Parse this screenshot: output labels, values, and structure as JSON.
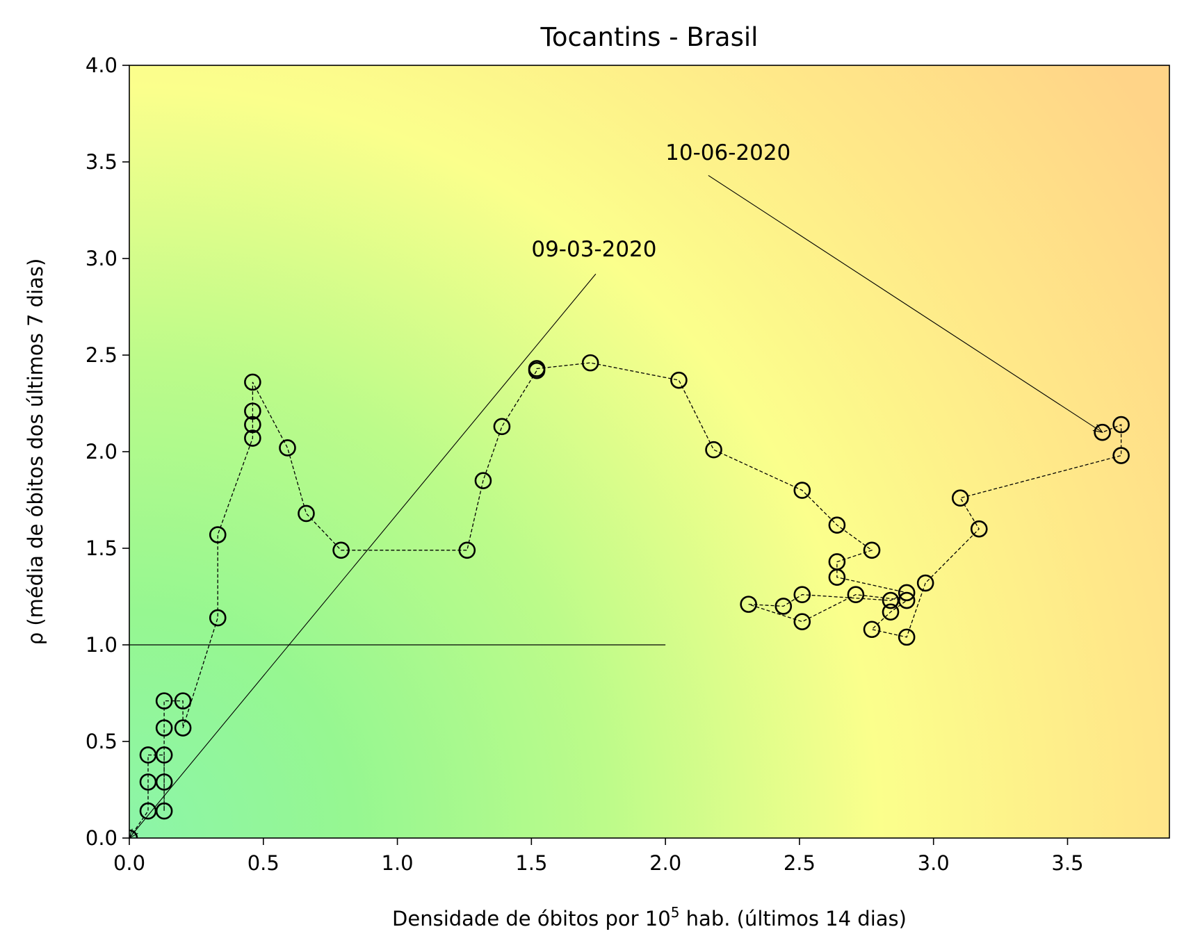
{
  "chart_data": {
    "type": "scatter",
    "title": "Tocantins - Brasil",
    "xlabel_main": "Densidade de óbitos por 10",
    "xlabel_sup": "5",
    "xlabel_tail": " hab. (últimos 14 dias)",
    "ylabel": "ρ (média de óbitos dos últimos 7 dias)",
    "xlim": [
      0,
      3.88
    ],
    "ylim": [
      0,
      4.0
    ],
    "xticks": [
      0.0,
      0.5,
      1.0,
      1.5,
      2.0,
      2.5,
      3.0,
      3.5
    ],
    "xtick_labels": [
      "0.0",
      "0.5",
      "1.0",
      "1.5",
      "2.0",
      "2.5",
      "3.0",
      "3.5"
    ],
    "yticks": [
      0.0,
      0.5,
      1.0,
      1.5,
      2.0,
      2.5,
      3.0,
      3.5,
      4.0
    ],
    "ytick_labels": [
      "0.0",
      "0.5",
      "1.0",
      "1.5",
      "2.0",
      "2.5",
      "3.0",
      "3.5",
      "4.0"
    ],
    "grid": false,
    "background": "gradient: green (low x, low y) to yellow to orange (high x, high y)",
    "reference_line": {
      "y": 1.0,
      "x_range": [
        0,
        2.0
      ]
    },
    "series": [
      {
        "style": "open circles connected by dashed line",
        "points": [
          [
            0.0,
            0.0
          ],
          [
            0.07,
            0.14
          ],
          [
            0.07,
            0.29
          ],
          [
            0.07,
            0.43
          ],
          [
            0.13,
            0.43
          ],
          [
            0.13,
            0.29
          ],
          [
            0.13,
            0.14
          ],
          [
            0.13,
            0.57
          ],
          [
            0.13,
            0.71
          ],
          [
            0.2,
            0.71
          ],
          [
            0.2,
            0.57
          ],
          [
            0.33,
            1.14
          ],
          [
            0.33,
            1.57
          ],
          [
            0.46,
            2.07
          ],
          [
            0.46,
            2.14
          ],
          [
            0.46,
            2.21
          ],
          [
            0.46,
            2.36
          ],
          [
            0.59,
            2.02
          ],
          [
            0.66,
            1.68
          ],
          [
            0.79,
            1.49
          ],
          [
            1.26,
            1.49
          ],
          [
            1.32,
            1.85
          ],
          [
            1.39,
            2.13
          ],
          [
            1.52,
            2.42
          ],
          [
            1.52,
            2.43
          ],
          [
            1.72,
            2.46
          ],
          [
            2.05,
            2.37
          ],
          [
            2.18,
            2.01
          ],
          [
            2.51,
            1.8
          ],
          [
            2.64,
            1.62
          ],
          [
            2.77,
            1.49
          ],
          [
            2.64,
            1.43
          ],
          [
            2.64,
            1.35
          ],
          [
            2.9,
            1.27
          ],
          [
            2.84,
            1.23
          ],
          [
            2.51,
            1.26
          ],
          [
            2.44,
            1.2
          ],
          [
            2.31,
            1.21
          ],
          [
            2.51,
            1.12
          ],
          [
            2.71,
            1.26
          ],
          [
            2.9,
            1.23
          ],
          [
            2.84,
            1.17
          ],
          [
            2.77,
            1.08
          ],
          [
            2.9,
            1.04
          ],
          [
            2.97,
            1.32
          ],
          [
            3.17,
            1.6
          ],
          [
            3.1,
            1.76
          ],
          [
            3.7,
            1.98
          ],
          [
            3.7,
            2.14
          ],
          [
            3.63,
            2.1
          ]
        ]
      }
    ],
    "annotations": [
      {
        "text": "09-03-2020",
        "text_at": [
          1.5,
          3.01
        ],
        "arrow_from": [
          1.74,
          2.92
        ],
        "arrow_to": [
          0.0,
          0.0
        ]
      },
      {
        "text": "10-06-2020",
        "text_at": [
          2.0,
          3.51
        ],
        "arrow_from": [
          2.16,
          3.43
        ],
        "arrow_to": [
          3.63,
          2.1
        ]
      }
    ]
  }
}
